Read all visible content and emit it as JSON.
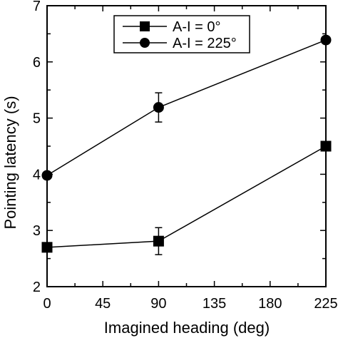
{
  "chart_data": {
    "type": "line",
    "xlabel": "Imagined heading (deg)",
    "ylabel": "Pointing latency (s)",
    "xlim": [
      0,
      225
    ],
    "ylim": [
      2,
      7
    ],
    "xticks": [
      0,
      45,
      90,
      135,
      180,
      225
    ],
    "yticks": [
      2,
      3,
      4,
      5,
      6,
      7
    ],
    "grid": false,
    "legend_position": "top-right",
    "series": [
      {
        "name": "A-I = 0°",
        "marker": "square",
        "x": [
          0,
          90,
          225
        ],
        "y": [
          2.7,
          2.81,
          4.5
        ],
        "err": [
          0.0,
          0.24,
          0.0
        ]
      },
      {
        "name": "A-I = 225°",
        "marker": "circle",
        "x": [
          0,
          90,
          225
        ],
        "y": [
          3.98,
          5.19,
          6.39
        ],
        "err": [
          0.0,
          0.26,
          0.0
        ]
      }
    ]
  }
}
